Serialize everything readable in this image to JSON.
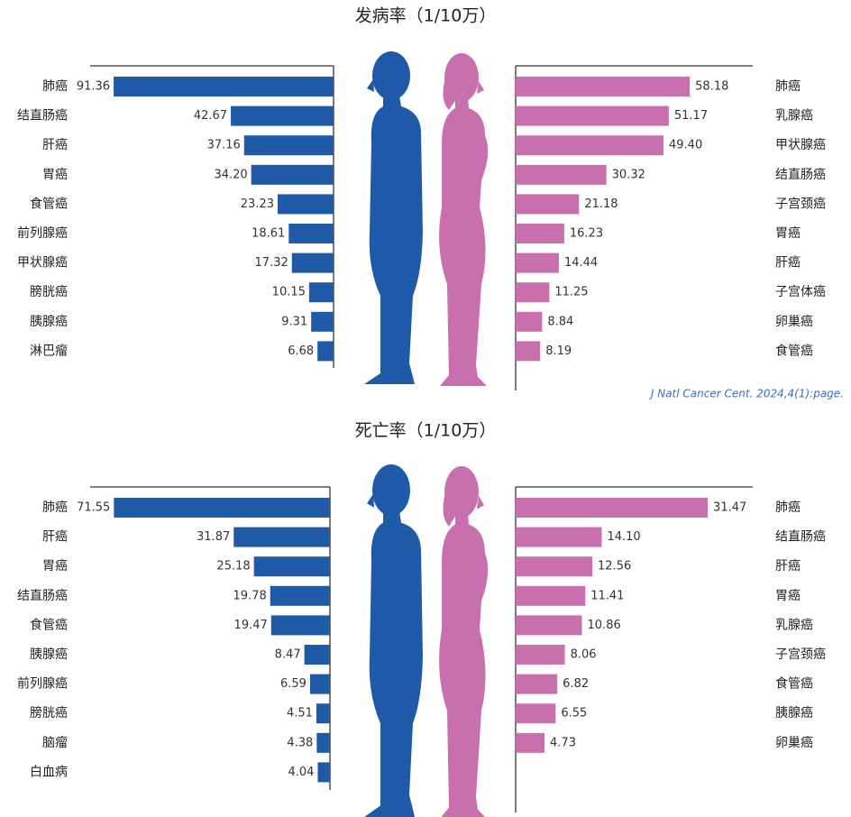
{
  "chart_data": [
    {
      "type": "bar",
      "title": "发病率（1/10万）",
      "series": [
        {
          "color": "#1f5aa8",
          "categories": [
            "肺癌",
            "结直肠癌",
            "肝癌",
            "胃癌",
            "食管癌",
            "前列腺癌",
            "甲状腺癌",
            "膀胱癌",
            "胰腺癌",
            "淋巴瘤"
          ],
          "values": [
            91.36,
            42.67,
            37.16,
            34.2,
            23.23,
            18.61,
            17.32,
            10.15,
            9.31,
            6.68
          ],
          "value_labels": [
            "91.36",
            "42.67",
            "37.16",
            "34.20",
            "23.23",
            "18.61",
            "17.32",
            "10.15",
            "9.31",
            "6.68"
          ]
        },
        {
          "color": "#c86fae",
          "categories": [
            "肺癌",
            "乳腺癌",
            "甲状腺癌",
            "结直肠癌",
            "子宫颈癌",
            "胃癌",
            "肝癌",
            "子宫体癌",
            "卵巢癌",
            "食管癌"
          ],
          "values": [
            58.18,
            51.17,
            49.4,
            30.32,
            21.18,
            16.23,
            14.44,
            11.25,
            8.84,
            8.19
          ],
          "value_labels": [
            "58.18",
            "51.17",
            "49.40",
            "30.32",
            "21.18",
            "16.23",
            "14.44",
            "11.25",
            "8.84",
            "8.19"
          ]
        }
      ],
      "source": "J Natl Cancer Cent. 2024,4(1):page."
    },
    {
      "type": "bar",
      "title": "死亡率（1/10万）",
      "series": [
        {
          "color": "#1f5aa8",
          "categories": [
            "肺癌",
            "肝癌",
            "胃癌",
            "结直肠癌",
            "食管癌",
            "胰腺癌",
            "前列腺癌",
            "膀胱癌",
            "脑瘤",
            "白血病"
          ],
          "values": [
            71.55,
            31.87,
            25.18,
            19.78,
            19.47,
            8.47,
            6.59,
            4.51,
            4.38,
            4.04
          ],
          "value_labels": [
            "71.55",
            "31.87",
            "25.18",
            "19.78",
            "19.47",
            "8.47",
            "6.59",
            "4.51",
            "4.38",
            "4.04"
          ]
        },
        {
          "color": "#c86fae",
          "categories": [
            "肺癌",
            "结直肠癌",
            "肝癌",
            "胃癌",
            "乳腺癌",
            "子宫颈癌",
            "食管癌",
            "胰腺癌",
            "卵巢癌"
          ],
          "values": [
            31.47,
            14.1,
            12.56,
            11.41,
            10.86,
            8.06,
            6.82,
            6.55,
            4.73
          ],
          "value_labels": [
            "31.47",
            "14.10",
            "12.56",
            "11.41",
            "10.86",
            "8.06",
            "6.82",
            "6.55",
            "4.73"
          ]
        }
      ]
    }
  ]
}
